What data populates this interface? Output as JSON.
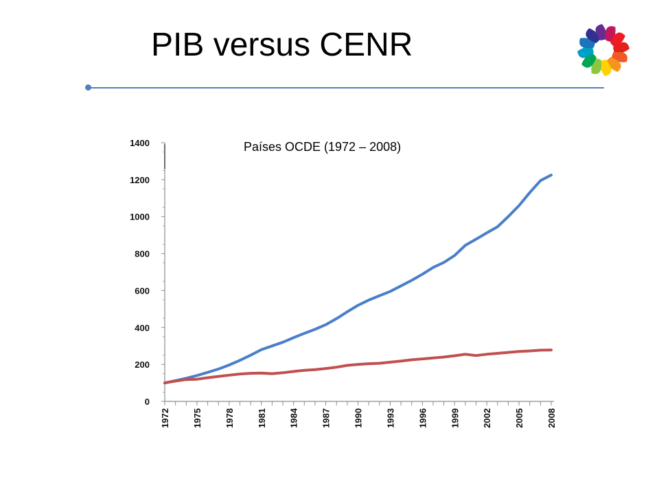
{
  "slide": {
    "title": "PIB versus CENR"
  },
  "colors": {
    "rule": "#4f81bd",
    "series_pib": "#4a7fc9",
    "series_cenr": "#c0504d"
  },
  "chart_data": {
    "type": "line",
    "title": "Países OCDE (1972 – 2008)",
    "xlabel": "",
    "ylabel": "",
    "ylim": [
      0,
      1400
    ],
    "yticks": [
      0,
      200,
      400,
      600,
      800,
      1000,
      1200,
      1400
    ],
    "xlim": [
      1972,
      2008
    ],
    "xticks": [
      "1972",
      "1975",
      "1978",
      "1981",
      "1984",
      "1987",
      "1990",
      "1993",
      "1996",
      "1999",
      "2002",
      "2005",
      "2008"
    ],
    "legend": "none",
    "grid": false,
    "x": [
      1972,
      1973,
      1974,
      1975,
      1976,
      1977,
      1978,
      1979,
      1980,
      1981,
      1982,
      1983,
      1984,
      1985,
      1986,
      1987,
      1988,
      1989,
      1990,
      1991,
      1992,
      1993,
      1994,
      1995,
      1996,
      1997,
      1998,
      1999,
      2000,
      2001,
      2002,
      2003,
      2004,
      2005,
      2006,
      2007,
      2008
    ],
    "series": [
      {
        "key": "pib",
        "values": [
          100,
          112,
          125,
          140,
          157,
          175,
          197,
          222,
          250,
          280,
          300,
          320,
          345,
          368,
          390,
          415,
          448,
          485,
          520,
          548,
          572,
          595,
          625,
          655,
          688,
          725,
          752,
          790,
          845,
          878,
          912,
          945,
          1000,
          1060,
          1130,
          1195,
          1225
        ]
      },
      {
        "key": "cenr",
        "values": [
          100,
          110,
          118,
          120,
          128,
          135,
          142,
          148,
          152,
          153,
          150,
          155,
          162,
          168,
          172,
          178,
          185,
          195,
          200,
          204,
          206,
          212,
          218,
          225,
          230,
          235,
          240,
          247,
          255,
          248,
          255,
          260,
          265,
          270,
          273,
          277,
          278
        ]
      }
    ]
  }
}
